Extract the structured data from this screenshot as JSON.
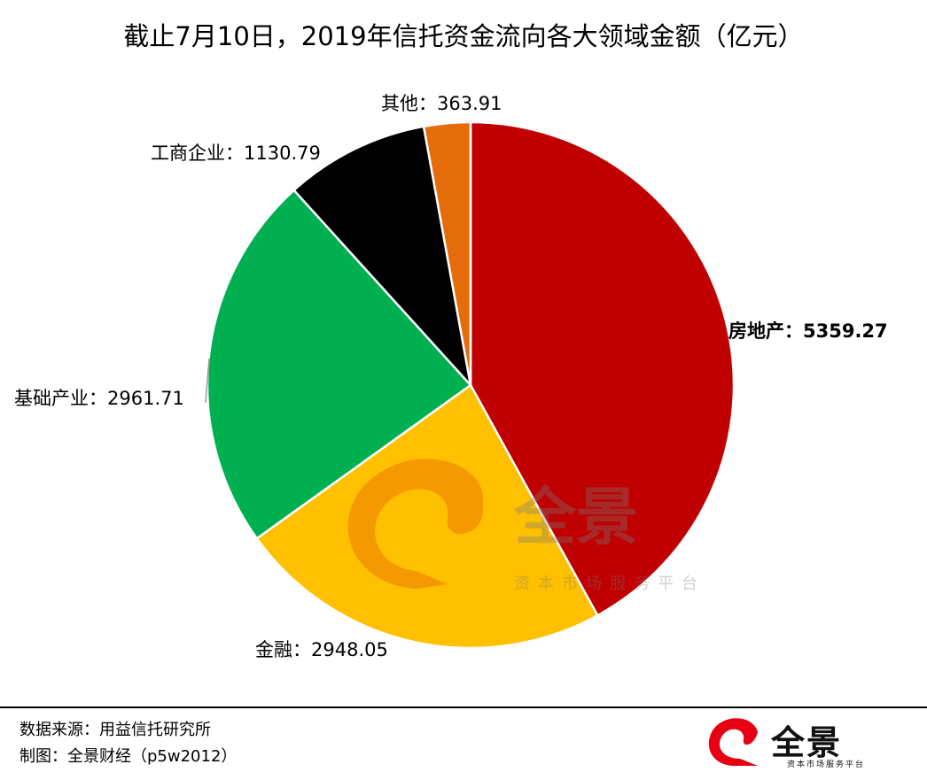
{
  "title": "截止7月10日，2019年信托资金流向各大领域金额（亿元）",
  "chart_data": {
    "type": "pie",
    "title": "截止7月10日，2019年信托资金流向各大领域金额（亿元）",
    "categories": [
      "房地产",
      "金融",
      "基础产业",
      "工商企业",
      "其他"
    ],
    "values": [
      5359.27,
      2948.05,
      2961.71,
      1130.79,
      363.91
    ],
    "colors": [
      "#C00000",
      "#FFC000",
      "#00B050",
      "#000000",
      "#E46C0A"
    ],
    "label_separator": "：",
    "start": "top",
    "direction": "clockwise",
    "legend": "none"
  },
  "watermark": {
    "brand": "全景",
    "tagline": "资本市场服务平台"
  },
  "footer": {
    "source": "数据来源：用益信托研究所",
    "credit": "制图：全景财经（p5w2012）",
    "logo_brand": "全景",
    "logo_tagline": "资本市场服务平台"
  }
}
